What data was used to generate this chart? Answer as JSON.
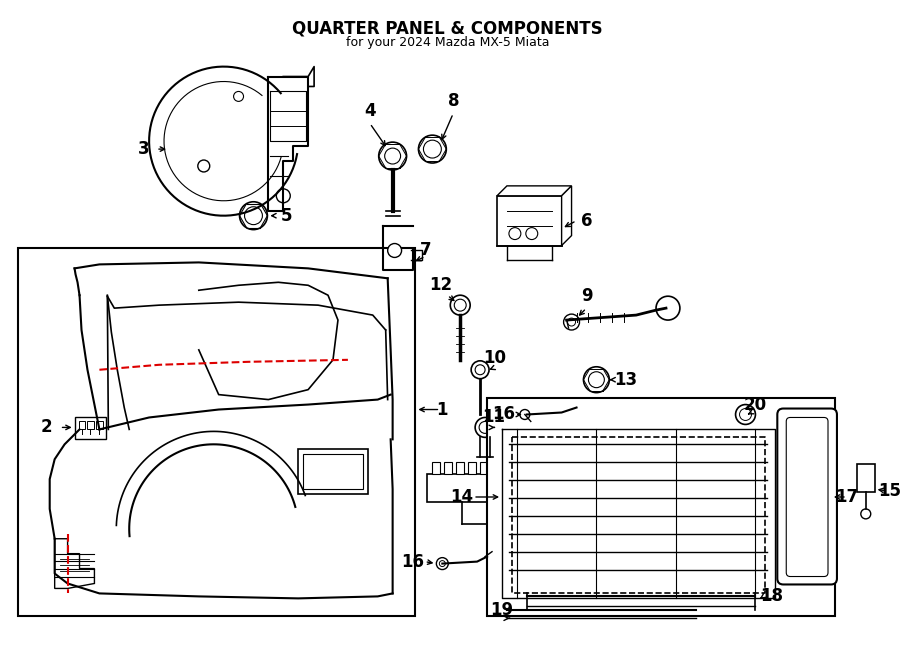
{
  "title": "QUARTER PANEL & COMPONENTS",
  "subtitle": "for your 2024 Mazda MX-5 Miata",
  "bg_color": "#ffffff",
  "line_color": "#000000",
  "red_color": "#dd0000",
  "fig_width": 9.0,
  "fig_height": 6.61,
  "dpi": 100,
  "label_fontsize": 12,
  "title_fontsize": 12,
  "subtitle_fontsize": 9
}
